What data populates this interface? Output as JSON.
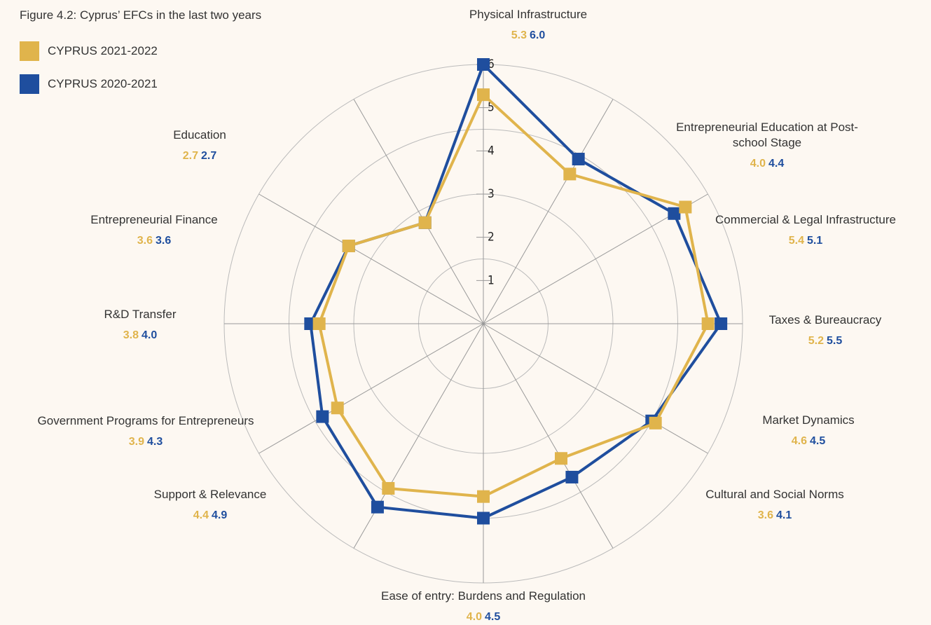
{
  "chart_data": {
    "type": "radar",
    "title": "Figure 4.2: Cyprus’ EFCs in the last two years",
    "categories": [
      "Physical Infrastructure",
      "Entrepreneurial Education at Post-school Stage",
      "Commercial & Legal Infrastructure",
      "Taxes & Bureaucracy",
      "Market Dynamics",
      "Cultural and Social Norms",
      "Ease of entry: Burdens and Regulation",
      "Support & Relevance",
      "Government Programs for Entrepreneurs",
      "R&D Transfer",
      "Entrepreneurial Finance",
      "Education"
    ],
    "series": [
      {
        "name": "CYPRUS 2021-2022",
        "color": "#e0b44c",
        "values": [
          5.3,
          4.0,
          5.4,
          5.2,
          4.6,
          3.6,
          4.0,
          4.4,
          3.9,
          3.8,
          3.6,
          2.7
        ],
        "value_labels": [
          "5.3",
          "4.0",
          "5.4",
          "5.2",
          "4.6",
          "3.6",
          "4.0",
          "4.4",
          "3.9",
          "3.8",
          "3.6",
          "2.7"
        ]
      },
      {
        "name": "CYPRUS 2020-2021",
        "color": "#1f4e9e",
        "values": [
          6.0,
          4.4,
          5.1,
          5.5,
          4.5,
          4.1,
          4.5,
          4.9,
          4.3,
          4.0,
          3.6,
          2.7
        ],
        "value_labels": [
          "6.0",
          "4.4",
          "5.1",
          "5.5",
          "4.5",
          "4.1",
          "4.5",
          "4.9",
          "4.3",
          "4.0",
          "3.6",
          "2.7"
        ]
      }
    ],
    "ylim": [
      0,
      6
    ],
    "yticks": [
      1,
      2,
      3,
      4,
      5,
      6
    ],
    "grid": true
  }
}
